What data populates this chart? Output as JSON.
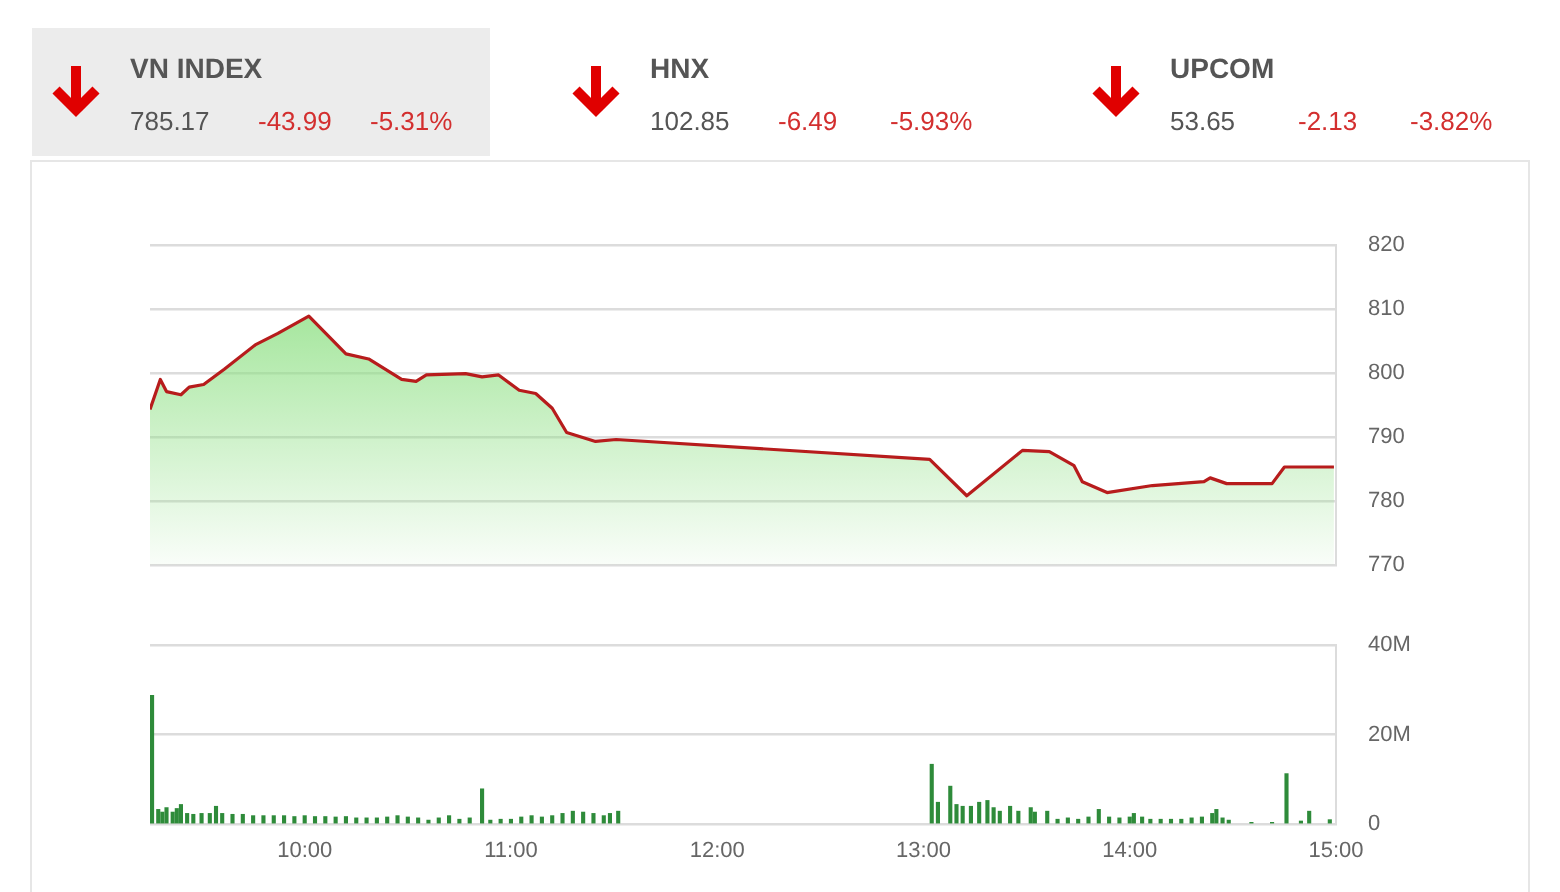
{
  "chart_data": [
    {
      "type": "other",
      "categories": [
        "VN INDEX",
        "HNX",
        "UPCOM"
      ],
      "series": [
        {
          "values": [
            785.17,
            102.85,
            53.65
          ]
        },
        {
          "color": "#d32f2f",
          "values": [
            -43.99,
            -6.49,
            -2.13
          ]
        },
        {
          "color": "#d32f2f",
          "values": [
            -5.31,
            -5.93,
            -3.82
          ],
          "value_labels": [
            "-5.31%",
            "-5.93%",
            "-3.82%"
          ]
        }
      ],
      "data_labels": true
    },
    {
      "type": "area",
      "xlim": [
        9.25,
        15
      ],
      "ylim": [
        770,
        820
      ],
      "yticks": [
        770,
        780,
        790,
        800,
        810,
        820
      ],
      "grid": "y",
      "tick_labels": "y",
      "legend": false,
      "series": [
        {
          "color": "#b71c1c",
          "x": [
            9.25,
            9.3,
            9.33,
            9.4,
            9.44,
            9.51,
            9.61,
            9.76,
            9.87,
            10.02,
            10.2,
            10.31,
            10.47,
            10.54,
            10.59,
            10.78,
            10.86,
            10.94,
            11.04,
            11.12,
            11.2,
            11.27,
            11.41,
            11.51,
            13.03,
            13.21,
            13.48,
            13.61,
            13.73,
            13.77,
            13.89,
            14.11,
            14.36,
            14.39,
            14.47,
            14.69,
            14.75,
            14.99
          ],
          "values": [
            794.3,
            799.0,
            797.1,
            796.6,
            797.8,
            798.2,
            800.6,
            804.4,
            806.2,
            808.9,
            803.0,
            802.2,
            799.0,
            798.7,
            799.7,
            799.9,
            799.4,
            799.7,
            797.3,
            796.8,
            794.5,
            790.7,
            789.3,
            789.6,
            786.5,
            780.8,
            787.9,
            787.7,
            785.5,
            783.0,
            781.3,
            782.4,
            783.0,
            783.6,
            782.7,
            782.7,
            785.3,
            785.3
          ]
        }
      ]
    },
    {
      "type": "bar",
      "xlim": [
        9.25,
        15
      ],
      "xticks": [
        {
          "value": 10,
          "label": "10:00"
        },
        {
          "value": 11,
          "label": "11:00"
        },
        {
          "value": 12,
          "label": "12:00"
        },
        {
          "value": 13,
          "label": "13:00"
        },
        {
          "value": 14,
          "label": "14:00"
        },
        {
          "value": 15,
          "label": "15:00"
        }
      ],
      "ylim": [
        0,
        40
      ],
      "yticks": [
        0,
        {
          "value": 20,
          "label": "20M"
        },
        {
          "value": 40,
          "label": "40M"
        }
      ],
      "grid": "y",
      "legend": false,
      "series": [
        {
          "color": "#2e8b3a",
          "x": [
            9.26,
            9.29,
            9.31,
            9.33,
            9.36,
            9.38,
            9.4,
            9.43,
            9.46,
            9.5,
            9.54,
            9.57,
            9.6,
            9.65,
            9.7,
            9.75,
            9.8,
            9.85,
            9.9,
            9.95,
            10.0,
            10.05,
            10.1,
            10.15,
            10.2,
            10.25,
            10.3,
            10.35,
            10.4,
            10.45,
            10.5,
            10.55,
            10.6,
            10.65,
            10.7,
            10.75,
            10.8,
            10.86,
            10.9,
            10.95,
            11.0,
            11.05,
            11.1,
            11.15,
            11.2,
            11.25,
            11.3,
            11.35,
            11.4,
            11.45,
            11.48,
            11.52,
            13.04,
            13.07,
            13.13,
            13.16,
            13.19,
            13.23,
            13.27,
            13.31,
            13.34,
            13.37,
            13.42,
            13.46,
            13.52,
            13.54,
            13.6,
            13.65,
            13.7,
            13.75,
            13.8,
            13.85,
            13.9,
            13.95,
            14.0,
            14.02,
            14.06,
            14.1,
            14.15,
            14.2,
            14.25,
            14.3,
            14.35,
            14.4,
            14.42,
            14.45,
            14.48,
            14.59,
            14.69,
            14.76,
            14.83,
            14.87,
            14.97
          ],
          "values": [
            28.7,
            3.2,
            2.6,
            3.6,
            2.6,
            3.4,
            4.3,
            2.3,
            2.1,
            2.3,
            2.3,
            3.9,
            2.3,
            2.1,
            2.1,
            1.8,
            1.8,
            1.8,
            1.8,
            1.6,
            1.8,
            1.6,
            1.6,
            1.5,
            1.6,
            1.3,
            1.3,
            1.3,
            1.5,
            1.8,
            1.5,
            1.3,
            0.8,
            1.3,
            1.8,
            1.0,
            1.3,
            7.8,
            0.8,
            1.0,
            1.0,
            1.5,
            1.8,
            1.5,
            1.8,
            2.3,
            2.8,
            2.6,
            2.3,
            1.8,
            2.3,
            2.8,
            13.3,
            4.8,
            8.4,
            4.3,
            3.9,
            3.9,
            4.8,
            5.2,
            3.6,
            2.8,
            3.9,
            2.8,
            3.6,
            2.6,
            2.8,
            1.0,
            1.3,
            1.0,
            1.5,
            3.2,
            1.5,
            1.3,
            1.5,
            2.3,
            1.5,
            1.0,
            1.0,
            1.0,
            1.0,
            1.3,
            1.5,
            2.3,
            3.2,
            1.3,
            0.8,
            0.3,
            0.3,
            11.2,
            0.6,
            2.8,
            0.9
          ]
        }
      ]
    }
  ]
}
